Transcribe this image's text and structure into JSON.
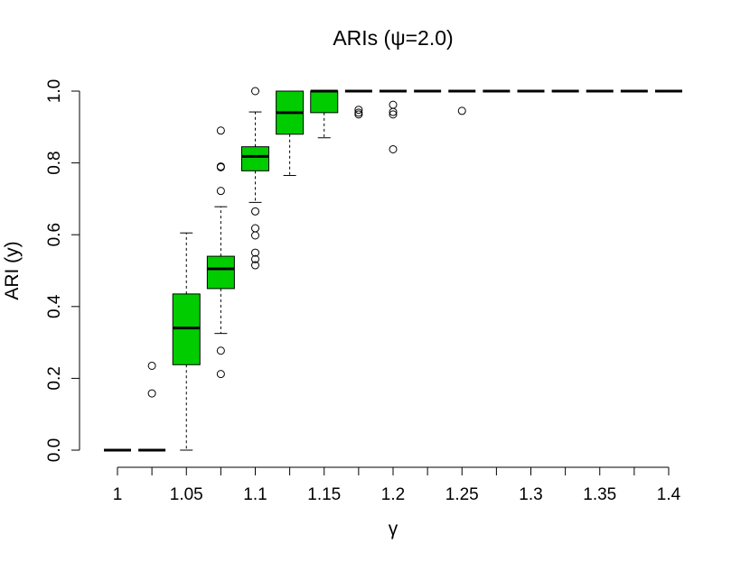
{
  "chart_data": {
    "type": "boxplot",
    "title": "ARIs (ψ=2.0)",
    "xlabel": "γ",
    "ylabel": "ARI (y)",
    "ylim": [
      0,
      1
    ],
    "yticks": [
      "0.0",
      "0.2",
      "0.4",
      "0.6",
      "0.8",
      "1.0"
    ],
    "xlim": [
      1,
      1.4
    ],
    "xticks": [
      "1",
      "1.05",
      "1.1",
      "1.15",
      "1.2",
      "1.25",
      "1.3",
      "1.35",
      "1.4"
    ],
    "box_color": "#00CC00",
    "boxes": [
      {
        "x": 1.0,
        "min": 0.0,
        "q1": 0.0,
        "median": 0.0,
        "q3": 0.0,
        "max": 0.0,
        "outliers": []
      },
      {
        "x": 1.025,
        "min": 0.0,
        "q1": 0.0,
        "median": 0.0,
        "q3": 0.0,
        "max": 0.0,
        "outliers": [
          0.158,
          0.235
        ]
      },
      {
        "x": 1.05,
        "min": 0.0,
        "q1": 0.238,
        "median": 0.34,
        "q3": 0.435,
        "max": 0.605,
        "outliers": []
      },
      {
        "x": 1.075,
        "min": 0.325,
        "q1": 0.45,
        "median": 0.505,
        "q3": 0.54,
        "max": 0.678,
        "outliers": [
          0.212,
          0.277,
          0.722,
          0.788,
          0.79,
          0.89
        ]
      },
      {
        "x": 1.1,
        "min": 0.69,
        "q1": 0.778,
        "median": 0.818,
        "q3": 0.845,
        "max": 0.942,
        "outliers": [
          0.515,
          0.532,
          0.55,
          0.598,
          0.618,
          0.665,
          1.0
        ]
      },
      {
        "x": 1.125,
        "min": 0.765,
        "q1": 0.88,
        "median": 0.94,
        "q3": 1.0,
        "max": 1.0,
        "outliers": []
      },
      {
        "x": 1.15,
        "min": 0.87,
        "q1": 0.94,
        "median": 1.0,
        "q3": 1.0,
        "max": 1.0,
        "outliers": []
      },
      {
        "x": 1.175,
        "min": 1.0,
        "q1": 1.0,
        "median": 1.0,
        "q3": 1.0,
        "max": 1.0,
        "outliers": [
          0.935,
          0.94,
          0.948
        ]
      },
      {
        "x": 1.2,
        "min": 1.0,
        "q1": 1.0,
        "median": 1.0,
        "q3": 1.0,
        "max": 1.0,
        "outliers": [
          0.838,
          0.935,
          0.942,
          0.962
        ]
      },
      {
        "x": 1.225,
        "min": 1.0,
        "q1": 1.0,
        "median": 1.0,
        "q3": 1.0,
        "max": 1.0,
        "outliers": []
      },
      {
        "x": 1.25,
        "min": 1.0,
        "q1": 1.0,
        "median": 1.0,
        "q3": 1.0,
        "max": 1.0,
        "outliers": [
          0.945
        ]
      },
      {
        "x": 1.275,
        "min": 1.0,
        "q1": 1.0,
        "median": 1.0,
        "q3": 1.0,
        "max": 1.0,
        "outliers": []
      },
      {
        "x": 1.3,
        "min": 1.0,
        "q1": 1.0,
        "median": 1.0,
        "q3": 1.0,
        "max": 1.0,
        "outliers": []
      },
      {
        "x": 1.325,
        "min": 1.0,
        "q1": 1.0,
        "median": 1.0,
        "q3": 1.0,
        "max": 1.0,
        "outliers": []
      },
      {
        "x": 1.35,
        "min": 1.0,
        "q1": 1.0,
        "median": 1.0,
        "q3": 1.0,
        "max": 1.0,
        "outliers": []
      },
      {
        "x": 1.375,
        "min": 1.0,
        "q1": 1.0,
        "median": 1.0,
        "q3": 1.0,
        "max": 1.0,
        "outliers": []
      },
      {
        "x": 1.4,
        "min": 1.0,
        "q1": 1.0,
        "median": 1.0,
        "q3": 1.0,
        "max": 1.0,
        "outliers": []
      }
    ]
  }
}
